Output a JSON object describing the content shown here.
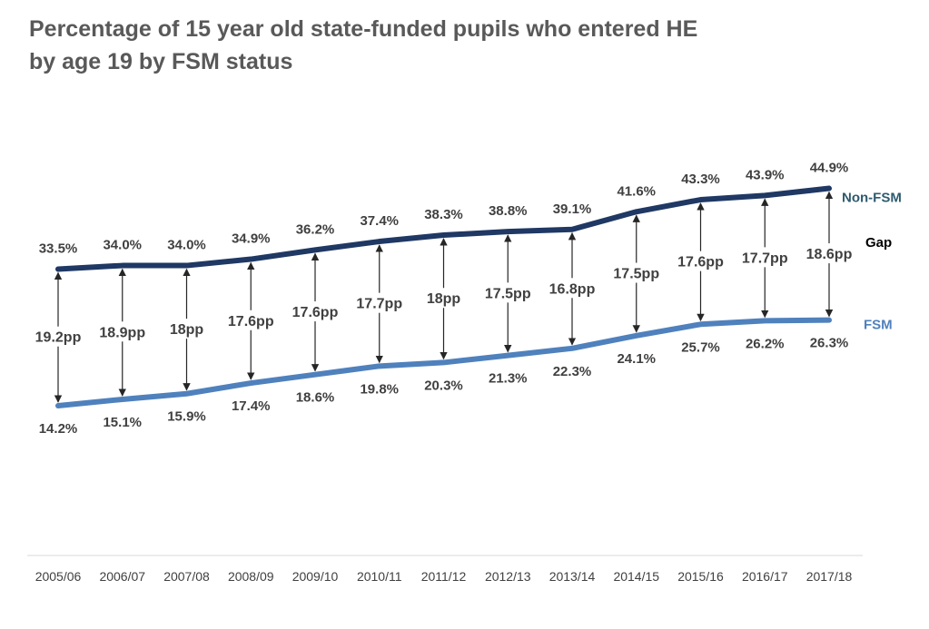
{
  "title_line1": "Percentage of 15 year old state-funded pupils who entered HE",
  "title_line2": "by age 19 by FSM status",
  "chart_data": {
    "type": "line",
    "title": "Percentage of 15 year old state-funded pupils who entered HE by age 19 by FSM status",
    "categories": [
      "2005/06",
      "2006/07",
      "2007/08",
      "2008/09",
      "2009/10",
      "2010/11",
      "2011/12",
      "2012/13",
      "2013/14",
      "2014/15",
      "2015/16",
      "2016/17",
      "2017/18"
    ],
    "series": [
      {
        "name": "Non-FSM",
        "color": "#1f3864",
        "values": [
          33.5,
          34.0,
          34.0,
          34.9,
          36.2,
          37.4,
          38.3,
          38.8,
          39.1,
          41.6,
          43.3,
          43.9,
          44.9
        ],
        "labels": [
          "33.5%",
          "34.0%",
          "34.0%",
          "34.9%",
          "36.2%",
          "37.4%",
          "38.3%",
          "38.8%",
          "39.1%",
          "41.6%",
          "43.3%",
          "43.9%",
          "44.9%"
        ]
      },
      {
        "name": "FSM",
        "color": "#4f81bd",
        "values": [
          14.2,
          15.1,
          15.9,
          17.4,
          18.6,
          19.8,
          20.3,
          21.3,
          22.3,
          24.1,
          25.7,
          26.2,
          26.3
        ],
        "labels": [
          "14.2%",
          "15.1%",
          "15.9%",
          "17.4%",
          "18.6%",
          "19.8%",
          "20.3%",
          "21.3%",
          "22.3%",
          "24.1%",
          "25.7%",
          "26.2%",
          "26.3%"
        ]
      }
    ],
    "gap": {
      "name": "Gap",
      "labels": [
        "19.2pp",
        "18.9pp",
        "18pp",
        "17.6pp",
        "17.6pp",
        "17.7pp",
        "18pp",
        "17.5pp",
        "16.8pp",
        "17.5pp",
        "17.6pp",
        "17.7pp",
        "18.6pp"
      ]
    },
    "ylim": [
      0,
      50
    ],
    "xlabel": "",
    "ylabel": "",
    "grid": false,
    "legend": "direct labels at right"
  }
}
